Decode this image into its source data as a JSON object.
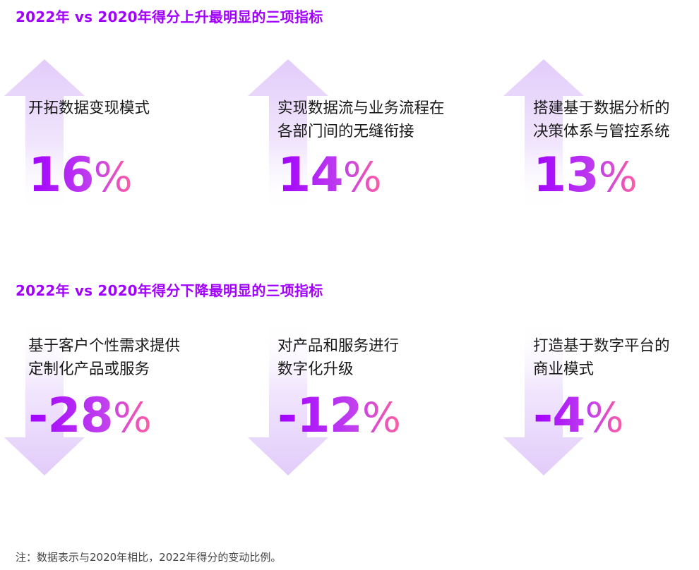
{
  "colors": {
    "accent": "#a100ff",
    "gradient_start": "#a100ff",
    "gradient_end": "#ff5fa0",
    "arrow_fill": "#ead8fb"
  },
  "rising": {
    "title": "2022年 vs 2020年得分上升最明显的三项指标",
    "arrow_icon": "arrow-up-icon",
    "cards": [
      {
        "label": [
          "开拓数据变现模式"
        ],
        "number": "16",
        "unit": "%"
      },
      {
        "label": [
          "实现数据流与业务流程在",
          "各部门间的无缝衔接"
        ],
        "number": "14",
        "unit": "%"
      },
      {
        "label": [
          "搭建基于数据分析的",
          "决策体系与管控系统"
        ],
        "number": "13",
        "unit": "%"
      }
    ]
  },
  "falling": {
    "title": "2022年 vs 2020年得分下降最明显的三项指标",
    "arrow_icon": "arrow-down-icon",
    "cards": [
      {
        "label": [
          "基于客户个性需求提供",
          "定制化产品或服务"
        ],
        "number": "-28",
        "unit": "%"
      },
      {
        "label": [
          "对产品和服务进行",
          "数字化升级"
        ],
        "number": "-12",
        "unit": "%"
      },
      {
        "label": [
          "打造基于数字平台的",
          "商业模式"
        ],
        "number": "-4",
        "unit": "%"
      }
    ]
  },
  "footnote": "注：数据表示与2020年相比，2022年得分的变动比例。"
}
